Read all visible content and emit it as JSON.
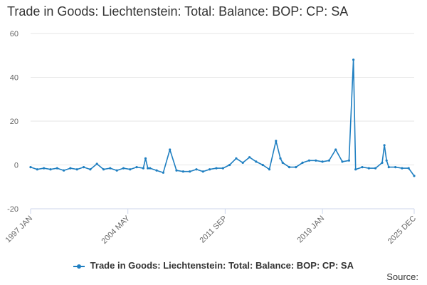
{
  "title": "Trade in Goods: Liechtenstein: Total: Balance: BOP: CP: SA",
  "source_label": "Source:",
  "colors": {
    "series": "#1f7fc1",
    "grid": "#e6e6e6",
    "axis": "#ccd6eb",
    "text": "#666666"
  },
  "chart_data": {
    "type": "line",
    "title": "Trade in Goods: Liechtenstein: Total: Balance: BOP: CP: SA",
    "xlabel": "",
    "ylabel": "",
    "xlim": [
      "1997 JAN",
      "2025 DEC"
    ],
    "ylim": [
      -20,
      60
    ],
    "y_ticks": [
      -20,
      0,
      20,
      40,
      60
    ],
    "x_ticks": [
      "1997 JAN",
      "2004 MAY",
      "2011 SEP",
      "2019 JAN",
      "2025 DEC"
    ],
    "grid": true,
    "legend": "bottom",
    "series": [
      {
        "name": "Trade in Goods: Liechtenstein: Total: Balance: BOP: CP: SA",
        "x": [
          "1997 JAN",
          "1997 JUL",
          "1998 JAN",
          "1998 JUL",
          "1999 JAN",
          "1999 JUL",
          "2000 JAN",
          "2000 JUL",
          "2001 JAN",
          "2001 JUL",
          "2002 JAN",
          "2002 JUL",
          "2003 JAN",
          "2003 JUL",
          "2004 JAN",
          "2004 JUL",
          "2005 JAN",
          "2005 JUL",
          "2005 SEP",
          "2005 NOV",
          "2006 JAN",
          "2006 JUL",
          "2007 JAN",
          "2007 JUL",
          "2008 JAN",
          "2008 JUL",
          "2009 JAN",
          "2009 JUL",
          "2010 JAN",
          "2010 JUL",
          "2011 JAN",
          "2011 JUL",
          "2012 JAN",
          "2012 JUL",
          "2013 JAN",
          "2013 JUL",
          "2014 JAN",
          "2014 JUL",
          "2015 JAN",
          "2015 JUL",
          "2015 NOV",
          "2016 JAN",
          "2016 JUL",
          "2017 JAN",
          "2017 JUL",
          "2018 JAN",
          "2018 JUL",
          "2019 JAN",
          "2019 JUL",
          "2020 JAN",
          "2020 JUL",
          "2021 JAN",
          "2021 MAY",
          "2021 JUL",
          "2022 JAN",
          "2022 JUL",
          "2023 JAN",
          "2023 JUL",
          "2023 SEP",
          "2023 NOV",
          "2024 JAN",
          "2024 JUL",
          "2025 JAN",
          "2025 JUL",
          "2025 DEC"
        ],
        "values": [
          -1,
          -2,
          -1.5,
          -2,
          -1.5,
          -2.5,
          -1.5,
          -2,
          -1,
          -2,
          0.5,
          -2,
          -1.5,
          -2.5,
          -1.5,
          -2,
          -1,
          -1.5,
          3,
          -1.5,
          -1.5,
          -2.5,
          -3.5,
          7,
          -2.5,
          -3,
          -3,
          -2,
          -3,
          -2,
          -1.5,
          -1.5,
          0,
          3,
          1,
          3.5,
          1.5,
          0,
          -2,
          11,
          3,
          1,
          -1,
          -1,
          1,
          2,
          2,
          1.5,
          2,
          7,
          1.5,
          2,
          48,
          -2,
          -1,
          -1.5,
          -1.5,
          1,
          9,
          2,
          -1,
          -1,
          -1.5,
          -1.5,
          -5
        ]
      }
    ]
  }
}
